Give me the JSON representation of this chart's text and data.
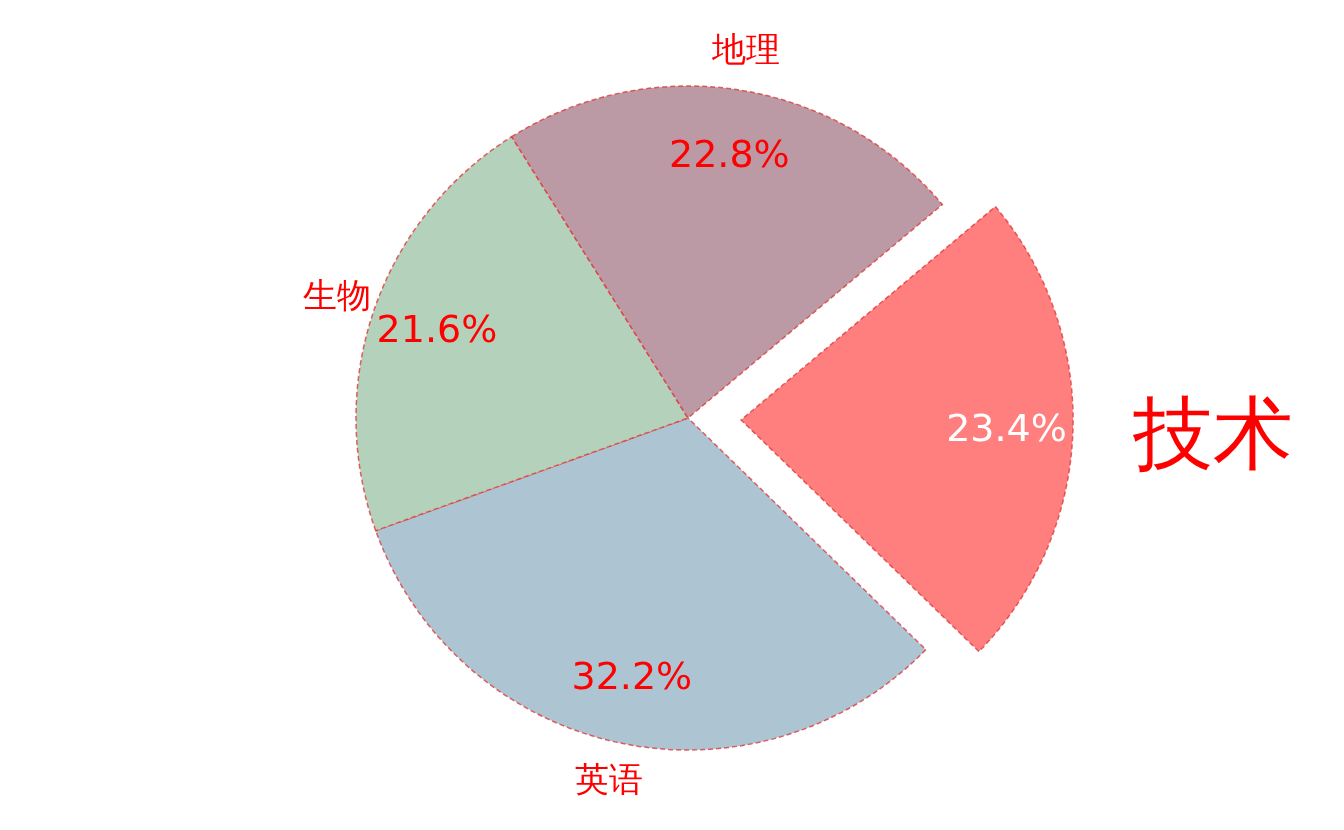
{
  "chart_data": {
    "type": "pie",
    "categories": [
      "技术",
      "英语",
      "生物",
      "地理"
    ],
    "values": [
      23.4,
      32.2,
      21.6,
      22.8
    ],
    "value_labels": [
      "23.4%",
      "32.2%",
      "21.6%",
      "22.8%"
    ],
    "colors": [
      "#ff7f7f",
      "#adc4d3",
      "#b3d1bb",
      "#bb99a5"
    ]
  }
}
